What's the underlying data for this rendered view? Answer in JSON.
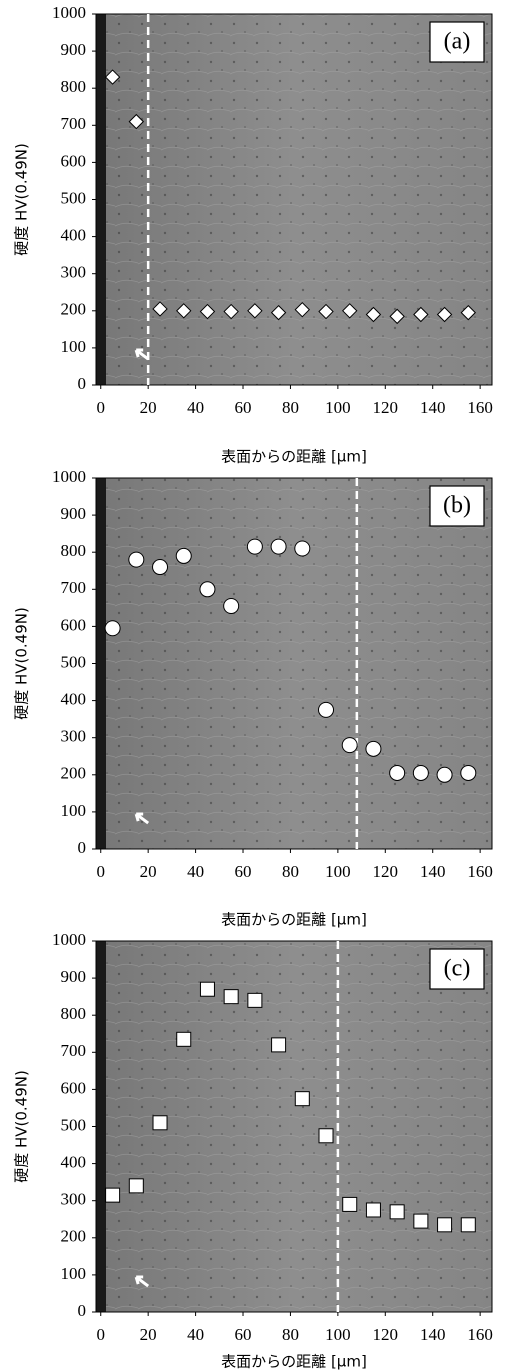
{
  "chart_data": [
    {
      "type": "scatter",
      "panel_label": "(a)",
      "marker": "diamond",
      "color": "#ffffff",
      "x_label": "表面からの距離 [μm]",
      "y_label": "硬度 HV(0.49N)",
      "x": [
        5,
        15,
        25,
        35,
        45,
        55,
        65,
        75,
        85,
        95,
        105,
        115,
        125,
        135,
        145,
        155
      ],
      "values": [
        830,
        710,
        205,
        200,
        198,
        198,
        200,
        195,
        203,
        198,
        200,
        190,
        185,
        190,
        190,
        195
      ],
      "boundary": 20,
      "xlim": [
        -2,
        165
      ],
      "ylim": [
        0,
        1000
      ],
      "xticks": [
        0,
        20,
        40,
        60,
        80,
        100,
        120,
        140,
        160
      ],
      "yticks": [
        0,
        100,
        200,
        300,
        400,
        500,
        600,
        700,
        800,
        900,
        1000
      ]
    },
    {
      "type": "scatter",
      "panel_label": "(b)",
      "marker": "circle",
      "color": "#ffffff",
      "x_label": "表面からの距離 [μm]",
      "y_label": "硬度 HV(0.49N)",
      "x": [
        5,
        15,
        25,
        35,
        45,
        55,
        65,
        75,
        85,
        95,
        105,
        115,
        125,
        135,
        145,
        155
      ],
      "values": [
        595,
        780,
        760,
        790,
        700,
        655,
        815,
        815,
        810,
        375,
        280,
        270,
        205,
        205,
        200,
        205
      ],
      "boundary": 108,
      "xlim": [
        -2,
        165
      ],
      "ylim": [
        0,
        1000
      ],
      "xticks": [
        0,
        20,
        40,
        60,
        80,
        100,
        120,
        140,
        160
      ],
      "yticks": [
        0,
        100,
        200,
        300,
        400,
        500,
        600,
        700,
        800,
        900,
        1000
      ]
    },
    {
      "type": "scatter",
      "panel_label": "(c)",
      "marker": "square",
      "color": "#ffffff",
      "x_label": "表面からの距離 [μm]",
      "y_label": "硬度 HV(0.49N)",
      "x": [
        5,
        15,
        25,
        35,
        45,
        55,
        65,
        75,
        85,
        95,
        105,
        115,
        125,
        135,
        145,
        155
      ],
      "values": [
        315,
        340,
        510,
        735,
        870,
        850,
        840,
        720,
        575,
        475,
        290,
        275,
        270,
        245,
        235,
        235
      ],
      "boundary": 100,
      "xlim": [
        -2,
        165
      ],
      "ylim": [
        0,
        1000
      ],
      "xticks": [
        0,
        20,
        40,
        60,
        80,
        100,
        120,
        140,
        160
      ],
      "yticks": [
        0,
        100,
        200,
        300,
        400,
        500,
        600,
        700,
        800,
        900,
        1000
      ]
    }
  ]
}
